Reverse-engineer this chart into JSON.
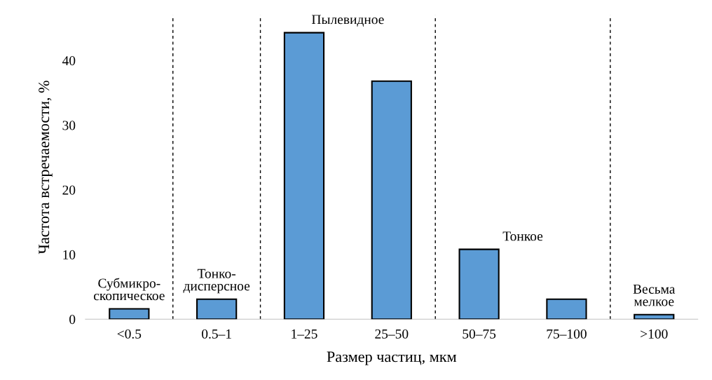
{
  "chart_data": {
    "type": "bar",
    "xlabel": "Размер частиц, мкм",
    "ylabel": "Частота встречаемости, %",
    "categories": [
      "<0.5",
      "0.5–1",
      "1–25",
      "25–50",
      "50–75",
      "75–100",
      ">100"
    ],
    "values": [
      1.6,
      3.1,
      44.3,
      36.8,
      10.8,
      3.1,
      0.7
    ],
    "color": "#5b9bd5",
    "ylim": [
      0,
      47
    ],
    "yticks": [
      0,
      10,
      20,
      30,
      40
    ],
    "grid": false,
    "annotations": [
      "Субмикро-\nскопическое",
      "Тонко-\nдисперсное",
      "Пылевидное",
      "Тонкое",
      "Весьма\nмелкое"
    ]
  }
}
